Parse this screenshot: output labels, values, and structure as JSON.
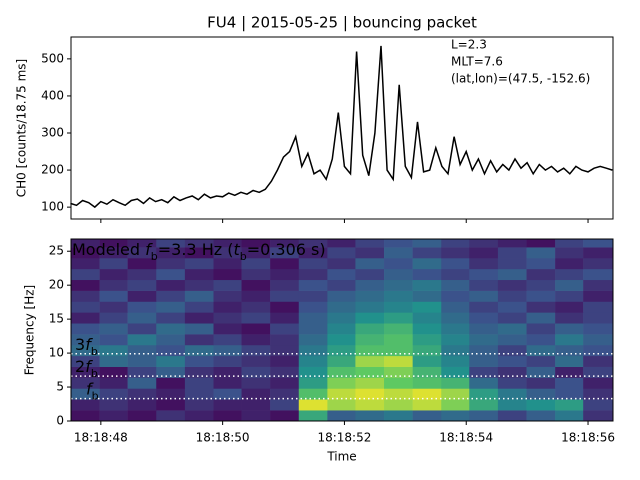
{
  "chart_data": [
    {
      "type": "line",
      "title": "FU4 | 2015-05-25 | bouncing packet",
      "ylabel": "CH0 [counts/18.75 ms]",
      "color": "#000000",
      "x": [
        47.5,
        47.6,
        47.7,
        47.8,
        47.9,
        48.0,
        48.1,
        48.2,
        48.3,
        48.4,
        48.5,
        48.6,
        48.7,
        48.8,
        48.9,
        49.0,
        49.1,
        49.2,
        49.3,
        49.4,
        49.5,
        49.6,
        49.7,
        49.8,
        49.9,
        50.0,
        50.1,
        50.2,
        50.3,
        50.4,
        50.5,
        50.6,
        50.7,
        50.8,
        50.9,
        51.0,
        51.1,
        51.2,
        51.3,
        51.4,
        51.5,
        51.6,
        51.7,
        51.8,
        51.9,
        52.0,
        52.1,
        52.2,
        52.3,
        52.4,
        52.5,
        52.6,
        52.7,
        52.8,
        52.9,
        53.0,
        53.1,
        53.2,
        53.3,
        53.4,
        53.5,
        53.6,
        53.7,
        53.8,
        53.9,
        54.0,
        54.1,
        54.2,
        54.3,
        54.4,
        54.5,
        54.6,
        54.7,
        54.8,
        54.9,
        55.0,
        55.1,
        55.2,
        55.3,
        55.4,
        55.5,
        55.6,
        55.7,
        55.8,
        55.9,
        56.0,
        56.1,
        56.2,
        56.3,
        56.4
      ],
      "values": [
        110,
        105,
        118,
        112,
        100,
        115,
        108,
        120,
        112,
        105,
        118,
        122,
        110,
        125,
        115,
        120,
        112,
        128,
        118,
        125,
        130,
        120,
        135,
        125,
        130,
        128,
        138,
        132,
        140,
        135,
        145,
        140,
        148,
        170,
        200,
        235,
        250,
        290,
        210,
        245,
        190,
        200,
        175,
        230,
        355,
        210,
        190,
        520,
        240,
        185,
        300,
        535,
        200,
        175,
        430,
        210,
        180,
        330,
        195,
        200,
        260,
        210,
        190,
        290,
        215,
        250,
        200,
        230,
        190,
        225,
        195,
        215,
        200,
        230,
        205,
        220,
        190,
        215,
        200,
        210,
        195,
        205,
        190,
        210,
        200,
        195,
        205,
        210,
        205,
        200
      ],
      "xlim": [
        47.51,
        56.41
      ],
      "ylim": [
        68,
        559
      ],
      "xticks": [
        48,
        50,
        52,
        54,
        56
      ],
      "yticks": [
        100,
        200,
        300,
        400,
        500
      ],
      "annotations": [
        "L=2.3",
        "MLT=7.6",
        "(lat,lon)=(47.5, -152.6)"
      ]
    },
    {
      "type": "heatmap",
      "xlabel": "Time",
      "ylabel": "Frequency [Hz]",
      "colormap": "viridis",
      "xlim": [
        47.51,
        56.41
      ],
      "ylim": [
        0,
        26.8
      ],
      "xticks": [
        {
          "value": 48,
          "label": "18:18:48"
        },
        {
          "value": 50,
          "label": "18:18:50"
        },
        {
          "value": 52,
          "label": "18:18:52"
        },
        {
          "value": 54,
          "label": "18:18:54"
        },
        {
          "value": 56,
          "label": "18:18:56"
        }
      ],
      "yticks": [
        0,
        5,
        10,
        15,
        20,
        25
      ],
      "x_edges": [
        47.51,
        47.98,
        48.44,
        48.91,
        49.38,
        49.85,
        50.31,
        50.78,
        51.25,
        51.72,
        52.18,
        52.65,
        53.12,
        53.59,
        54.05,
        54.52,
        54.99,
        55.46,
        55.92,
        56.41
      ],
      "y_edges": [
        0,
        1.6,
        3.2,
        4.8,
        6.4,
        8.0,
        9.6,
        11.2,
        12.8,
        14.4,
        16.0,
        17.6,
        19.2,
        20.8,
        22.4,
        24.0,
        25.6,
        27.2
      ],
      "z": [
        [
          0.05,
          0.1,
          0.05,
          0.15,
          0.1,
          0.05,
          0.1,
          0.05,
          0.6,
          0.3,
          0.35,
          0.4,
          0.3,
          0.35,
          0.3,
          0.2,
          0.3,
          0.4,
          0.15
        ],
        [
          0.1,
          0.15,
          0.1,
          0.05,
          0.15,
          0.1,
          0.1,
          0.2,
          0.95,
          0.85,
          0.9,
          0.85,
          0.9,
          0.8,
          0.6,
          0.45,
          0.5,
          0.55,
          0.2
        ],
        [
          0.3,
          0.2,
          0.15,
          0.1,
          0.2,
          0.25,
          0.1,
          0.15,
          0.7,
          0.9,
          0.95,
          0.9,
          0.95,
          0.85,
          0.55,
          0.4,
          0.3,
          0.25,
          0.15
        ],
        [
          0.15,
          0.1,
          0.3,
          0.05,
          0.2,
          0.1,
          0.15,
          0.1,
          0.55,
          0.8,
          0.85,
          0.75,
          0.7,
          0.65,
          0.35,
          0.2,
          0.15,
          0.25,
          0.1
        ],
        [
          0.1,
          0.05,
          0.2,
          0.3,
          0.15,
          0.1,
          0.2,
          0.15,
          0.5,
          0.7,
          0.75,
          0.8,
          0.65,
          0.5,
          0.2,
          0.15,
          0.3,
          0.1,
          0.2
        ],
        [
          0.2,
          0.35,
          0.3,
          0.4,
          0.25,
          0.2,
          0.15,
          0.1,
          0.45,
          0.6,
          0.85,
          0.9,
          0.55,
          0.45,
          0.3,
          0.25,
          0.2,
          0.35,
          0.15
        ],
        [
          0.35,
          0.4,
          0.3,
          0.25,
          0.35,
          0.3,
          0.2,
          0.15,
          0.4,
          0.55,
          0.7,
          0.7,
          0.6,
          0.4,
          0.3,
          0.2,
          0.35,
          0.3,
          0.25
        ],
        [
          0.3,
          0.25,
          0.4,
          0.3,
          0.15,
          0.2,
          0.1,
          0.15,
          0.35,
          0.5,
          0.65,
          0.7,
          0.55,
          0.45,
          0.35,
          0.3,
          0.25,
          0.4,
          0.3
        ],
        [
          0.25,
          0.3,
          0.2,
          0.35,
          0.3,
          0.1,
          0.05,
          0.2,
          0.3,
          0.45,
          0.6,
          0.65,
          0.5,
          0.4,
          0.3,
          0.35,
          0.2,
          0.3,
          0.25
        ],
        [
          0.1,
          0.2,
          0.3,
          0.2,
          0.1,
          0.15,
          0.2,
          0.1,
          0.3,
          0.4,
          0.5,
          0.55,
          0.45,
          0.35,
          0.25,
          0.2,
          0.3,
          0.15,
          0.2
        ],
        [
          0.2,
          0.15,
          0.25,
          0.3,
          0.2,
          0.1,
          0.15,
          0.05,
          0.25,
          0.35,
          0.4,
          0.45,
          0.5,
          0.3,
          0.2,
          0.25,
          0.15,
          0.1,
          0.2
        ],
        [
          0.15,
          0.25,
          0.1,
          0.2,
          0.3,
          0.15,
          0.1,
          0.2,
          0.2,
          0.3,
          0.35,
          0.4,
          0.35,
          0.25,
          0.3,
          0.2,
          0.25,
          0.2,
          0.1
        ],
        [
          0.05,
          0.15,
          0.2,
          0.1,
          0.15,
          0.2,
          0.05,
          0.15,
          0.25,
          0.2,
          0.3,
          0.35,
          0.4,
          0.3,
          0.2,
          0.15,
          0.2,
          0.3,
          0.15
        ],
        [
          0.2,
          0.1,
          0.15,
          0.25,
          0.1,
          0.05,
          0.15,
          0.1,
          0.15,
          0.25,
          0.2,
          0.3,
          0.25,
          0.2,
          0.25,
          0.3,
          0.15,
          0.2,
          0.25
        ],
        [
          0.1,
          0.2,
          0.05,
          0.15,
          0.2,
          0.1,
          0.2,
          0.05,
          0.2,
          0.15,
          0.3,
          0.25,
          0.35,
          0.25,
          0.15,
          0.2,
          0.25,
          0.1,
          0.15
        ],
        [
          0.05,
          0.1,
          0.15,
          0.1,
          0.05,
          0.15,
          0.1,
          0.2,
          0.1,
          0.2,
          0.15,
          0.3,
          0.2,
          0.15,
          0.1,
          0.2,
          0.3,
          0.15,
          0.1
        ],
        [
          0.1,
          0.05,
          0.1,
          0.2,
          0.15,
          0.1,
          0.05,
          0.1,
          0.15,
          0.1,
          0.2,
          0.25,
          0.3,
          0.2,
          0.15,
          0.1,
          0.05,
          0.2,
          0.25
        ]
      ],
      "annotation": [
        {
          "text": "Modeled "
        },
        {
          "text": "f",
          "italic": true
        },
        {
          "text": "b",
          "sub": true
        },
        {
          "text": "=3.3 Hz ("
        },
        {
          "text": "t",
          "italic": true
        },
        {
          "text": "b",
          "sub": true
        },
        {
          "text": "=0.306 s)"
        }
      ],
      "harmonic_color": "#ffffff",
      "harmonics": [
        {
          "value": 3.3,
          "label": [
            {
              "text": "f",
              "italic": true
            },
            {
              "text": "b",
              "sub": true
            }
          ]
        },
        {
          "value": 6.6,
          "label": [
            {
              "text": "2"
            },
            {
              "text": "f",
              "italic": true
            },
            {
              "text": "b",
              "sub": true
            }
          ]
        },
        {
          "value": 9.9,
          "label": [
            {
              "text": "3"
            },
            {
              "text": "f",
              "italic": true
            },
            {
              "text": "b",
              "sub": true
            }
          ]
        }
      ]
    }
  ]
}
